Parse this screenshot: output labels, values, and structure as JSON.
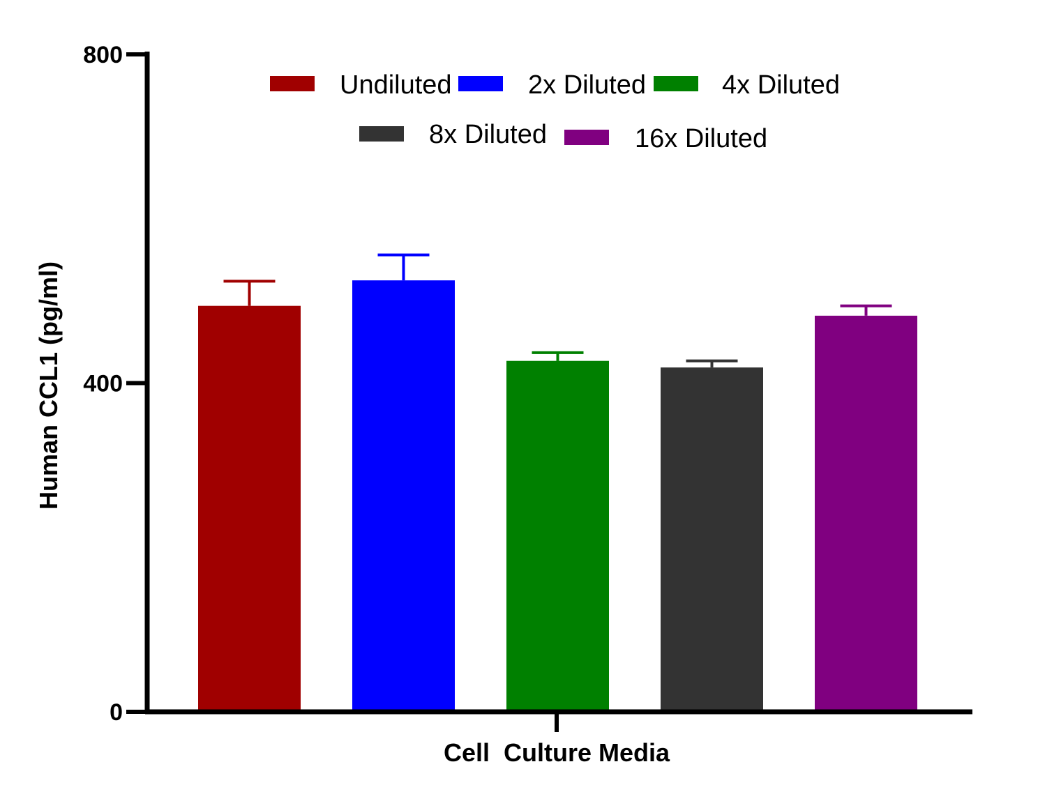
{
  "chart_data": {
    "type": "bar",
    "title": "",
    "xlabel": "Cell  Culture Media",
    "ylabel": "Human CCL1 (pg/ml)",
    "ylim": [
      0,
      800
    ],
    "yticks": [
      0,
      400,
      800
    ],
    "ytick_labels": [
      "0",
      "400",
      "800"
    ],
    "categories": [
      "Cell  Culture Media"
    ],
    "series": [
      {
        "name": "Undiluted",
        "color": "#A00000",
        "values": [
          494
        ],
        "error": [
          30
        ]
      },
      {
        "name": "2x Diluted",
        "color": "#0000FF",
        "values": [
          525
        ],
        "error": [
          31
        ]
      },
      {
        "name": "4x Diluted",
        "color": "#008000",
        "values": [
          427
        ],
        "error": [
          10
        ]
      },
      {
        "name": "8x Diluted",
        "color": "#333333",
        "values": [
          419
        ],
        "error": [
          8
        ]
      },
      {
        "name": "16x Diluted",
        "color": "#800080",
        "values": [
          482
        ],
        "error": [
          12
        ]
      }
    ],
    "grid": false,
    "legend_position": "top"
  }
}
